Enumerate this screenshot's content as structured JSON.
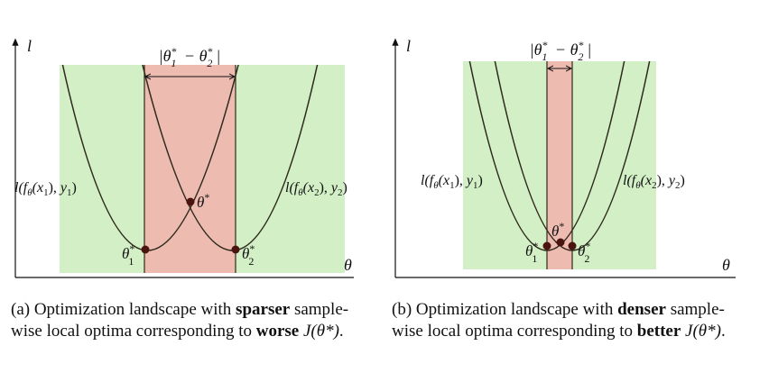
{
  "panels": [
    {
      "id": "a",
      "axis_y_label": "l",
      "axis_x_label": "θ",
      "gap_label": "|θ*1 − θ*2|",
      "left_curve_label": "l(fθ(x1), y1)",
      "right_curve_label": "l(fθ(x2), y2)",
      "theta_star_label": "θ*",
      "theta1_label": "θ*1",
      "theta2_label": "θ*2",
      "caption": {
        "prefix": "(a) Optimization landscape with ",
        "bold1": "sparser",
        "middle": " sample-wise local optima corresponding to ",
        "bold2": "worse",
        "suffix_pre": " ",
        "math": "J(θ*)",
        "suffix": "."
      }
    },
    {
      "id": "b",
      "axis_y_label": "l",
      "axis_x_label": "θ",
      "gap_label": "|θ*1 − θ*2|",
      "left_curve_label": "l(fθ(x1), y1)",
      "right_curve_label": "l(fθ(x2), y2)",
      "theta_star_label": "θ*",
      "theta1_label": "θ*1",
      "theta2_label": "θ*2",
      "caption": {
        "prefix": "(b) Optimization landscape with ",
        "bold1": "denser",
        "middle": " sample-wise local optima corresponding to ",
        "bold2": "better",
        "suffix_pre": " ",
        "math": "J(θ*)",
        "suffix": "."
      }
    }
  ],
  "colors": {
    "green_region": "#d2efc6",
    "red_region": "#eebbb1",
    "curve": "#2e2a1c",
    "point": "#4a150f",
    "axis": "#111111"
  }
}
